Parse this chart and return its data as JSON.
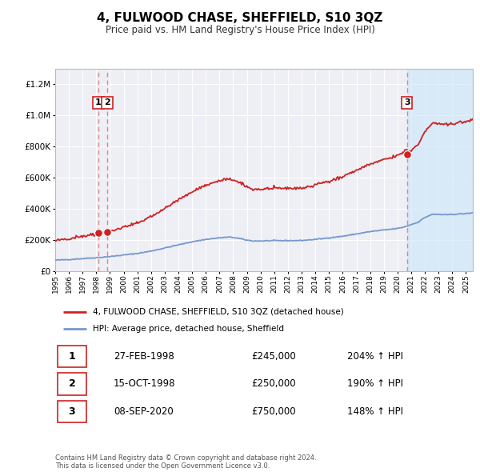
{
  "title": "4, FULWOOD CHASE, SHEFFIELD, S10 3QZ",
  "subtitle": "Price paid vs. HM Land Registry's House Price Index (HPI)",
  "ylim": [
    0,
    1300000
  ],
  "xlim_start": 1995.0,
  "xlim_end": 2025.5,
  "background_color": "#ffffff",
  "plot_bg_color": "#eeeef5",
  "grid_color": "#ffffff",
  "sale_color": "#cc2222",
  "hpi_color": "#7799cc",
  "hpi_fill_color": "#ddeeff",
  "dashed_line_color": "#dd8888",
  "marker_color": "#cc2222",
  "legend_label_sale": "4, FULWOOD CHASE, SHEFFIELD, S10 3QZ (detached house)",
  "legend_label_hpi": "HPI: Average price, detached house, Sheffield",
  "transaction_dates": [
    1998.15,
    1998.79,
    2020.69
  ],
  "transaction_labels": [
    "1",
    "2",
    "3"
  ],
  "transaction_prices": [
    245000,
    250000,
    750000
  ],
  "footer_text": "Contains HM Land Registry data © Crown copyright and database right 2024.\nThis data is licensed under the Open Government Licence v3.0.",
  "table_rows": [
    [
      "1",
      "27-FEB-1998",
      "£245,000",
      "204% ↑ HPI"
    ],
    [
      "2",
      "15-OCT-1998",
      "£250,000",
      "190% ↑ HPI"
    ],
    [
      "3",
      "08-SEP-2020",
      "£750,000",
      "148% ↑ HPI"
    ]
  ],
  "shade_region": [
    2020.69,
    2025.5
  ]
}
